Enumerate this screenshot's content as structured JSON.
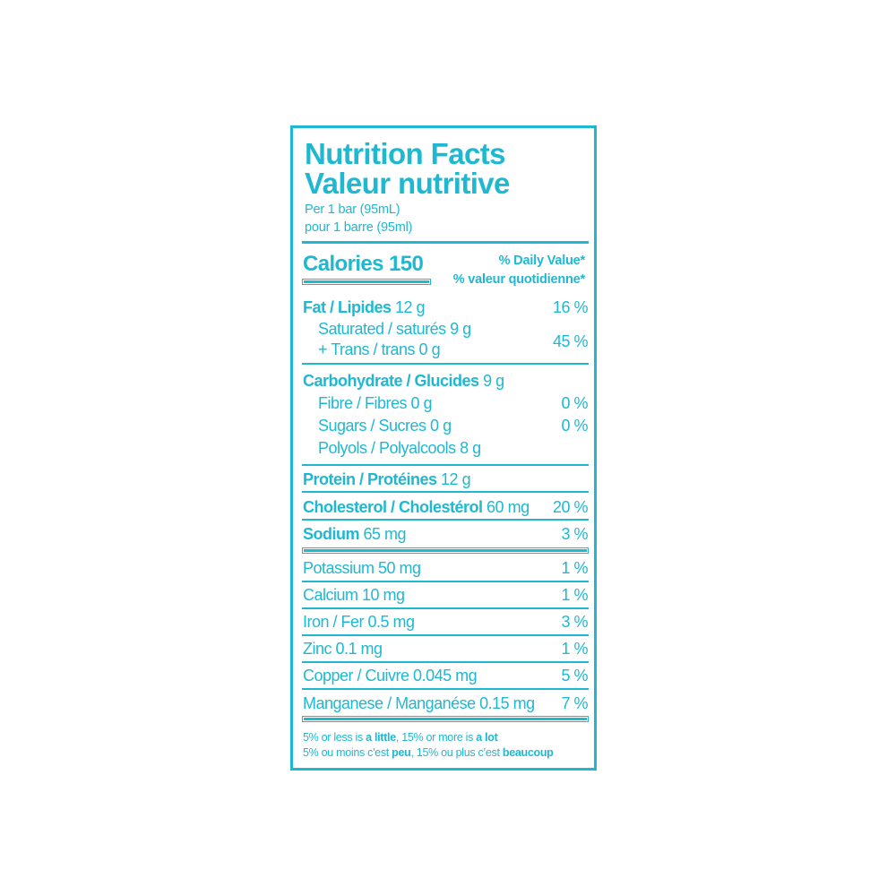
{
  "accent_color": "#1fb8d1",
  "title_en": "Nutrition Facts",
  "title_fr": "Valeur nutritive",
  "serving_en": "Per 1 bar (95mL)",
  "serving_fr": "pour 1 barre (95ml)",
  "calories_label": "Calories 150",
  "dv_en": "% Daily Value*",
  "dv_fr": "% valeur quotidienne*",
  "rows": [
    {
      "bold": "Fat / Lipides",
      "rest": " 12 g",
      "pct": "16 %"
    },
    {
      "bold": "",
      "rest": "Saturated / saturés 9 g",
      "pct": "45 %"
    },
    {
      "bold": "",
      "rest": "+ Trans / trans 0 g",
      "pct": ""
    },
    {
      "bold": "Carbohydrate / Glucides",
      "rest": " 9 g",
      "pct": ""
    },
    {
      "bold": "",
      "rest": "Fibre / Fibres 0 g",
      "pct": "0 %"
    },
    {
      "bold": "",
      "rest": "Sugars / Sucres 0 g",
      "pct": "0 %"
    },
    {
      "bold": "",
      "rest": "Polyols / Polyalcools 8 g",
      "pct": ""
    },
    {
      "bold": "Protein / Protéines",
      "rest": " 12 g",
      "pct": ""
    },
    {
      "bold": "Cholesterol / Cholestérol",
      "rest": " 60 mg",
      "pct": "20 %"
    },
    {
      "bold": "Sodium",
      "rest": " 65 mg",
      "pct": "3 %"
    },
    {
      "bold": "",
      "rest": "Potassium 50 mg",
      "pct": "1 %"
    },
    {
      "bold": "",
      "rest": "Calcium 10 mg",
      "pct": "1 %"
    },
    {
      "bold": "",
      "rest": "Iron / Fer 0.5 mg",
      "pct": "3 %"
    },
    {
      "bold": "",
      "rest": "Zinc 0.1 mg",
      "pct": "1 %"
    },
    {
      "bold": "",
      "rest": "Copper / Cuivre 0.045 mg",
      "pct": "5 %"
    },
    {
      "bold": "",
      "rest": "Manganese / Manganése 0.15 mg",
      "pct": "7 %"
    }
  ],
  "footnote": {
    "en": [
      "5% or less is ",
      "a little",
      ", 15% or more is ",
      "a lot"
    ],
    "fr": [
      "5% ou moins c'est ",
      "peu",
      ", 15% ou plus c’est ",
      "beaucoup"
    ]
  }
}
